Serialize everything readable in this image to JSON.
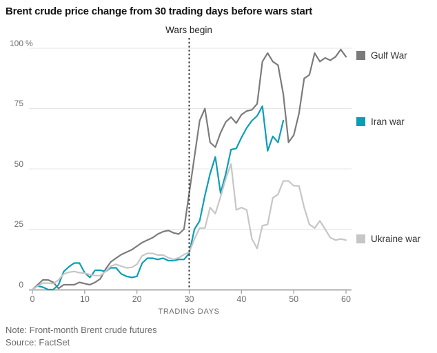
{
  "title": "Brent crude price change from 30 trading days before wars start",
  "annotation": {
    "wars_begin_label": "Wars begin",
    "wars_begin_day": 30
  },
  "footer": {
    "note": "Note: Front-month Brent crude futures",
    "source": "Source: FactSet"
  },
  "chart_data": {
    "type": "line",
    "title": "Brent crude price change from 30 trading days before wars start",
    "xlabel": "TRADING DAYS",
    "ylabel": "%",
    "x_ticks": [
      0,
      10,
      20,
      30,
      40,
      50,
      60
    ],
    "y_ticks": [
      0,
      25,
      50,
      75,
      100
    ],
    "y_unit": "%",
    "xlim": [
      0,
      60
    ],
    "ylim": [
      0,
      100
    ],
    "grid": "horizontal",
    "legend_position": "right",
    "vline": {
      "x": 30,
      "label": "Wars begin",
      "style": "dotted"
    },
    "colors": {
      "grid": "#e5e5e5",
      "axis": "#a3a3a3",
      "annotation": "#333333"
    },
    "series": [
      {
        "name": "Gulf War",
        "color": "#7b7b7b",
        "x_start": 0,
        "values": [
          0,
          2,
          4,
          4,
          3,
          0.5,
          2,
          2,
          2,
          3,
          2.5,
          2,
          3,
          4.5,
          8.5,
          11.5,
          13,
          14.5,
          15.5,
          16.5,
          18,
          19.5,
          20.5,
          21.5,
          23,
          24,
          24.5,
          23.5,
          23,
          25,
          40,
          55,
          70,
          75,
          61,
          59,
          65,
          69.5,
          71.5,
          69,
          72.5,
          74,
          74.5,
          77,
          94.5,
          98,
          94.5,
          93,
          81,
          61,
          64,
          73,
          87.5,
          89,
          98,
          94.5,
          96,
          95,
          96.5,
          99.5,
          96.5
        ]
      },
      {
        "name": "Iran war",
        "color": "#0a9db8",
        "x_start": 0,
        "values": [
          0,
          1.5,
          1,
          0,
          0,
          2,
          7.5,
          9.5,
          11,
          11,
          7,
          5,
          8,
          8,
          7.5,
          9,
          9,
          6.5,
          5.5,
          5,
          5.5,
          11,
          13,
          13,
          12.5,
          13,
          12,
          12,
          12.5,
          12.5,
          15,
          25,
          28.5,
          39,
          48,
          55,
          40,
          48,
          58,
          58.5,
          63,
          67,
          70,
          72,
          76,
          57.5,
          63.5,
          61,
          70
        ]
      },
      {
        "name": "Ukraine war",
        "color": "#c6c6c6",
        "x_start": 0,
        "values": [
          0,
          1.5,
          2.7,
          2.7,
          2.5,
          4,
          6.5,
          7.2,
          7.5,
          7,
          6.8,
          6.2,
          5.8,
          5.8,
          7.5,
          9.7,
          10.5,
          9.7,
          9,
          9.2,
          10.5,
          14,
          15,
          15,
          14.3,
          14.3,
          13.2,
          12.5,
          13.2,
          14.5,
          15.5,
          21,
          25.5,
          25.5,
          34,
          31.5,
          38.5,
          46,
          52,
          33,
          34,
          33,
          21,
          17,
          26.5,
          27,
          38,
          39.5,
          45,
          45,
          43,
          43,
          34,
          27,
          25.5,
          28.5,
          25,
          21.5,
          20.5,
          21,
          20.5
        ]
      }
    ]
  }
}
